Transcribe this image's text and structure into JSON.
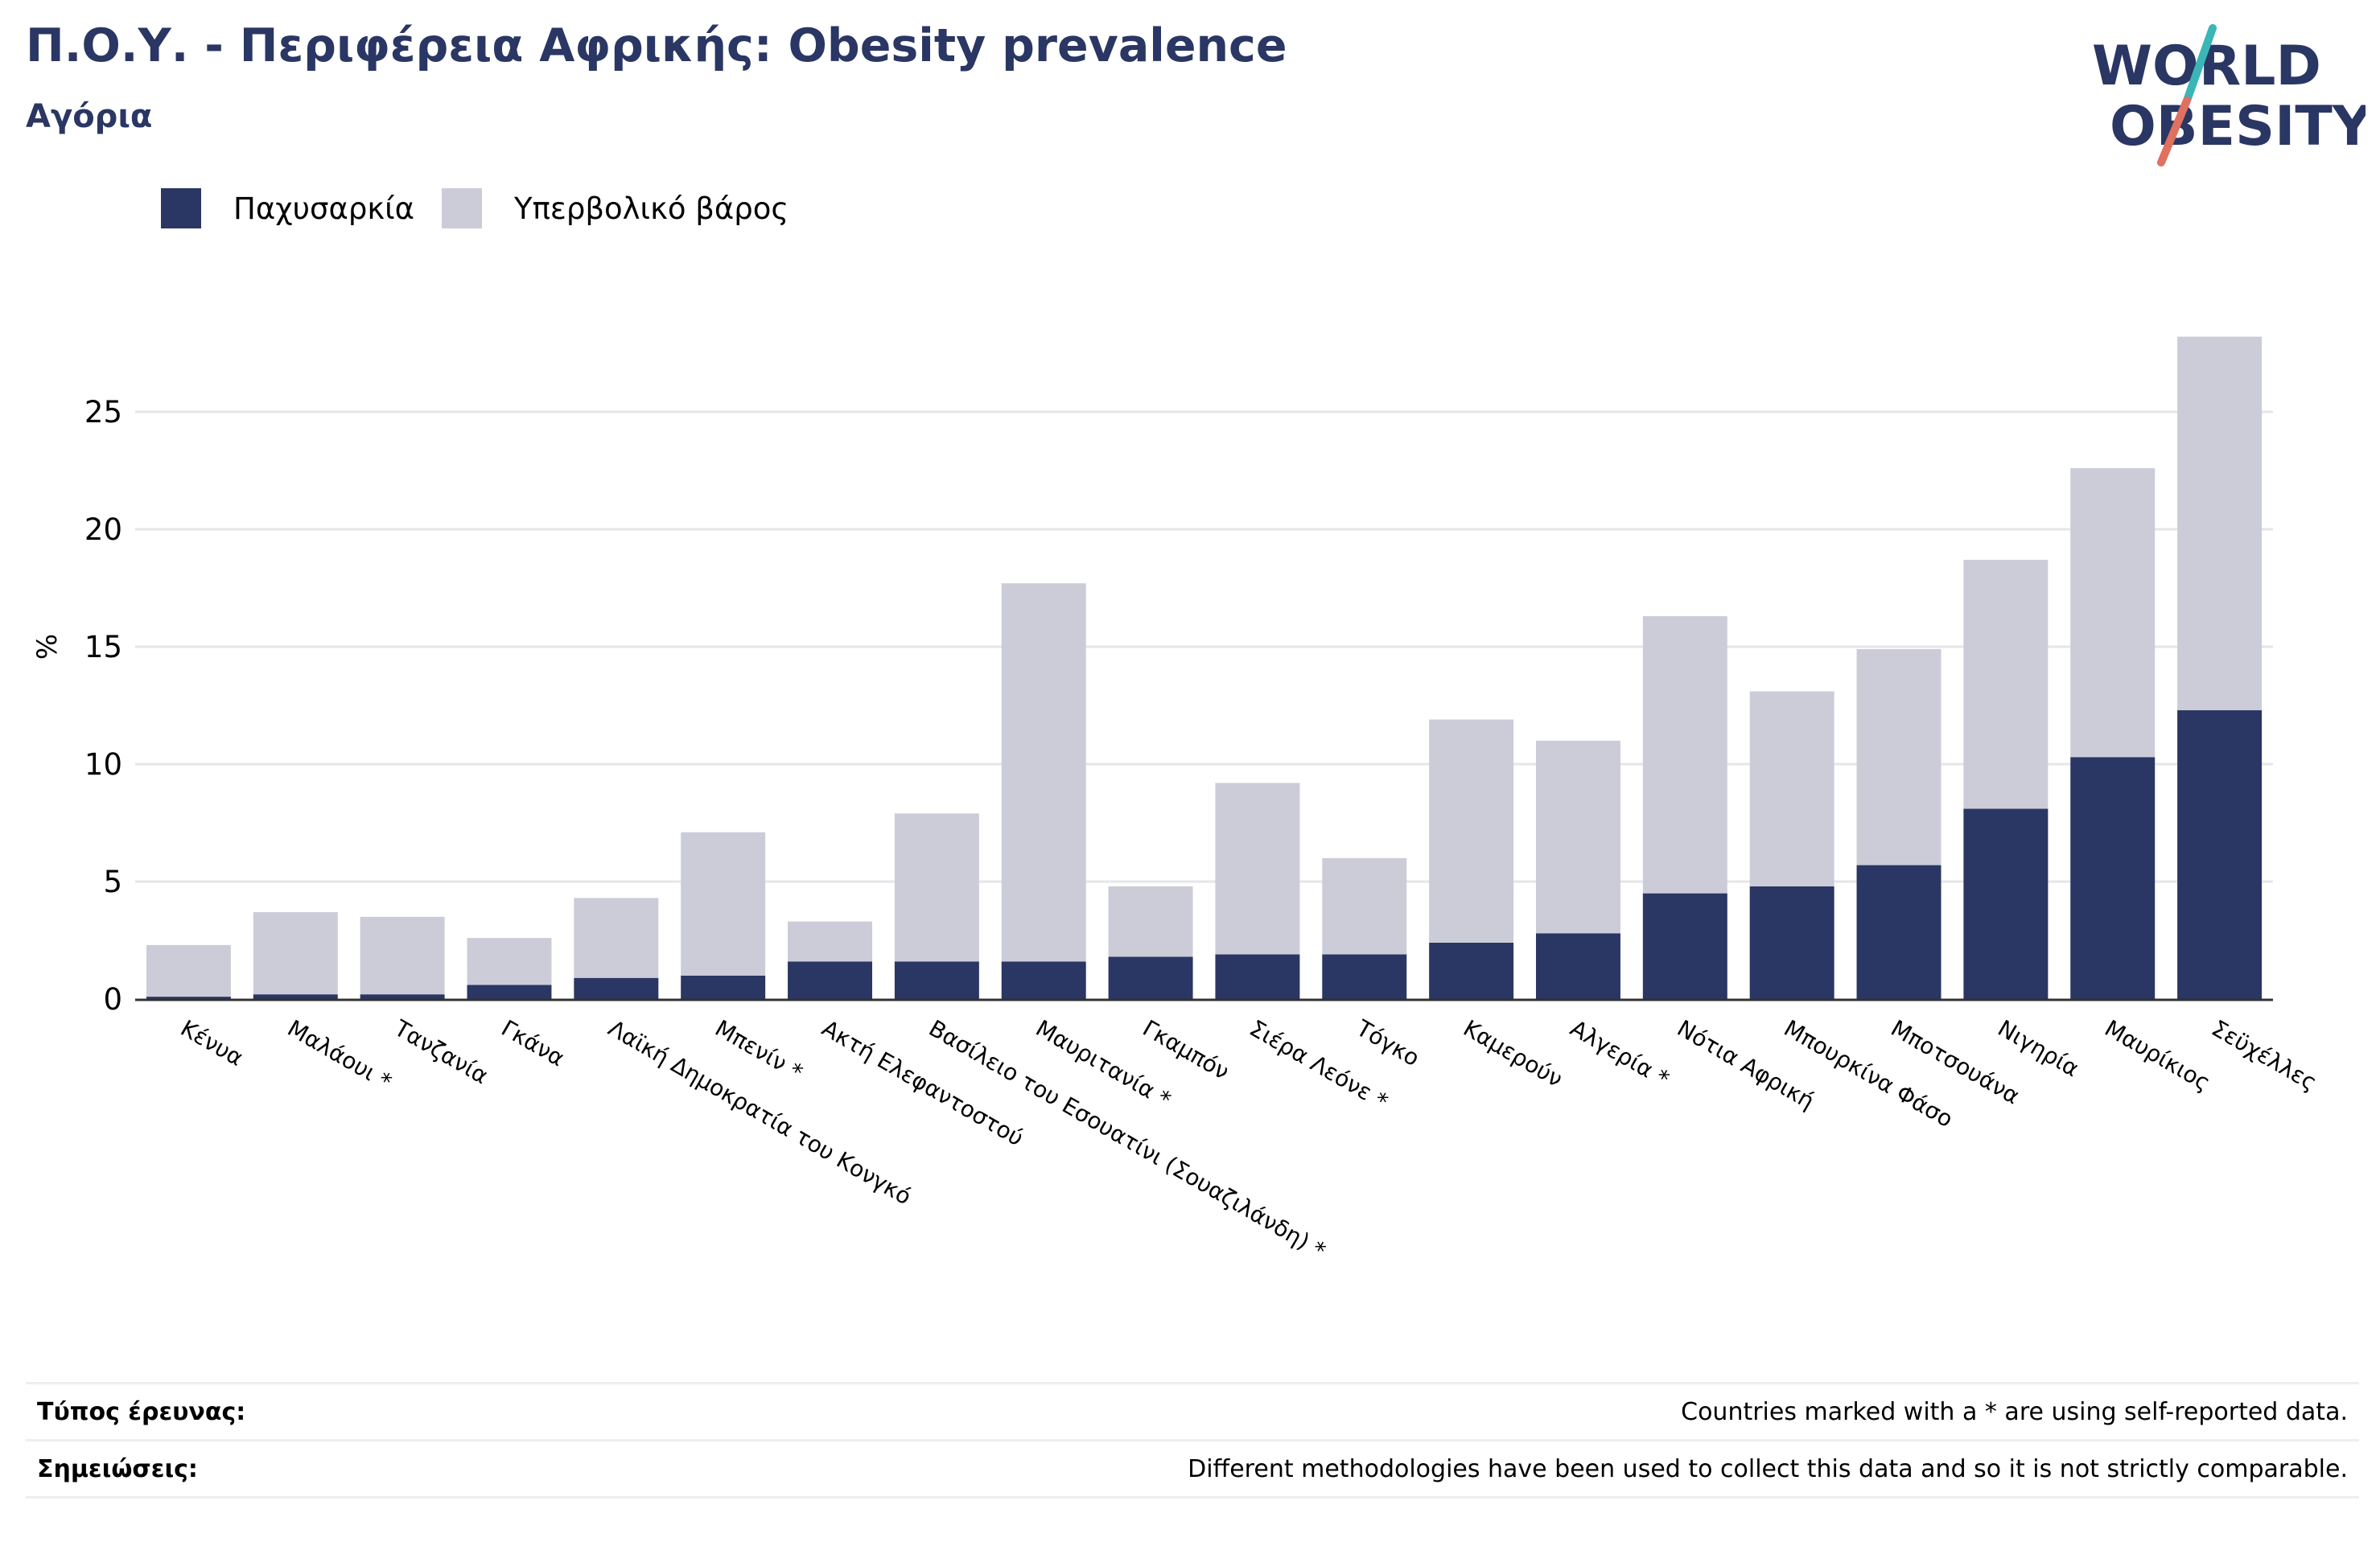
{
  "header": {
    "title": "Π.Ο.Υ. - Περιφέρεια Αφρικής: Obesity prevalence",
    "subtitle": "Αγόρια"
  },
  "logo": {
    "line1": "WORLD",
    "line2": "OBESITY",
    "icon": "world-obesity-logo"
  },
  "colors": {
    "obesity": "#2a3663",
    "overweight": "#cbccd8",
    "grid": "#e6e6ea",
    "axis": "#333333",
    "title": "#2a3663",
    "logo_slash_teal": "#3ab5b8",
    "logo_slash_coral": "#e0705f"
  },
  "chart_data": {
    "type": "bar",
    "stacked": true,
    "ylabel": "%",
    "xlabel": "",
    "ylim": [
      0,
      29
    ],
    "yticks": [
      0,
      5,
      10,
      15,
      20,
      25
    ],
    "grid": true,
    "legend_position": "top-left",
    "categories": [
      "Κένυα",
      "Μαλάουι *",
      "Τανζανία",
      "Γκάνα",
      "Λαϊκή Δημοκρατία του Κονγκό",
      "Μπενίν *",
      "Ακτή Ελεφαντοστού",
      "Βασίλειο του Εσουατίνι (Σουαζιλάνδη) *",
      "Μαυριτανία *",
      "Γκαμπόν",
      "Σιέρα Λεόνε *",
      "Τόγκο",
      "Καμερούν",
      "Αλγερία *",
      "Νότια Αφρική",
      "Μπουρκίνα Φάσο",
      "Μποτσουάνα",
      "Νιγηρία",
      "Μαυρίκιος",
      "Σεϋχέλλες"
    ],
    "series": [
      {
        "name": "Παχυσαρκία",
        "values": [
          0.1,
          0.2,
          0.2,
          0.6,
          0.9,
          1.0,
          1.6,
          1.6,
          1.6,
          1.8,
          1.9,
          1.9,
          2.4,
          2.8,
          4.5,
          4.8,
          5.7,
          8.1,
          10.3,
          12.3
        ]
      },
      {
        "name": "Υπερβολικό βάρος",
        "values": [
          2.2,
          3.5,
          3.3,
          2.0,
          3.4,
          6.1,
          1.7,
          6.3,
          16.1,
          3.0,
          7.3,
          4.1,
          9.5,
          8.2,
          11.8,
          8.3,
          9.2,
          10.6,
          12.3,
          15.9
        ]
      }
    ]
  },
  "footer": {
    "survey_label": "Τύπος έρευνας:",
    "survey_text": "Countries marked with a * are using self-reported data.",
    "notes_label": "Σημειώσεις:",
    "notes_text": "Different methodologies have been used to collect this data and so it is not strictly comparable."
  }
}
